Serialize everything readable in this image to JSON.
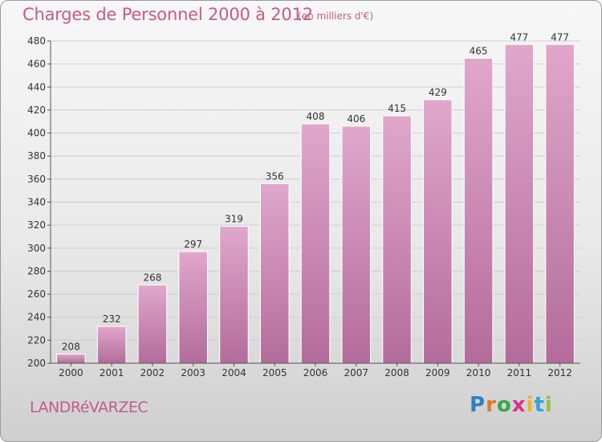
{
  "header": {
    "title": "Charges de Personnel 2000 à 2012",
    "subtitle": "(en milliers d'€)"
  },
  "footer": {
    "city": "LANDRéVARZEC",
    "logo": "Proxiti"
  },
  "colors": {
    "bar_top": "#e0a7cb",
    "bar_bottom": "#b36c9a",
    "title": "#c55a8a"
  },
  "chart_data": {
    "type": "bar",
    "title": "Charges de Personnel 2000 à 2012",
    "subtitle": "(en milliers d'€)",
    "xlabel": "",
    "ylabel": "",
    "categories": [
      "2000",
      "2001",
      "2002",
      "2003",
      "2004",
      "2005",
      "2006",
      "2007",
      "2008",
      "2009",
      "2010",
      "2011",
      "2012"
    ],
    "values": [
      208,
      232,
      268,
      297,
      319,
      356,
      408,
      406,
      415,
      429,
      465,
      477,
      477
    ],
    "ylim": [
      200,
      480
    ],
    "yticks": [
      200,
      220,
      240,
      260,
      280,
      300,
      320,
      340,
      360,
      380,
      400,
      420,
      440,
      460,
      480
    ],
    "grid": true,
    "data_labels": true
  }
}
